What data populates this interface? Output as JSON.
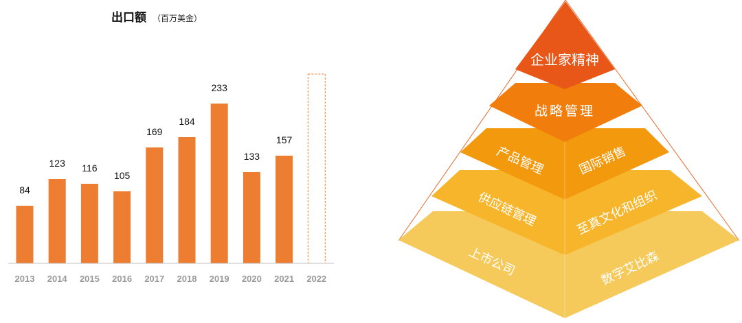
{
  "chart_data": {
    "type": "bar",
    "title": "出口额",
    "subtitle": "（百万美金）",
    "categories": [
      "2013",
      "2014",
      "2015",
      "2016",
      "2017",
      "2018",
      "2019",
      "2020",
      "2021",
      "2022"
    ],
    "values": [
      84,
      123,
      116,
      105,
      169,
      184,
      233,
      133,
      157,
      null
    ],
    "data_labels": [
      "84",
      "123",
      "116",
      "105",
      "169",
      "184",
      "233",
      "133",
      "157",
      ""
    ],
    "placeholder_category": "2022",
    "ylim": [
      0,
      250
    ],
    "grid": false,
    "xlabel": "",
    "ylabel": ""
  },
  "pyramid": {
    "apex": "企业家精神",
    "level2": "战略管理",
    "level3_left": "产品管理",
    "level3_right": "国际销售",
    "level4_left": "供应链管理",
    "level4_right": "至真文化和组织",
    "level5_left": "上市公司",
    "level5_right": "数字艾比森"
  },
  "colors": {
    "bar": "#ed7d31",
    "placeholder_outline": "#ed7d31",
    "axis": "#bfbfbf",
    "pyr_apex": "#e85618",
    "pyr_level2": "#f07d0c",
    "pyr_level3": "#f2990e",
    "pyr_level4": "#f7b52c",
    "pyr_level5": "#f5c95a"
  }
}
